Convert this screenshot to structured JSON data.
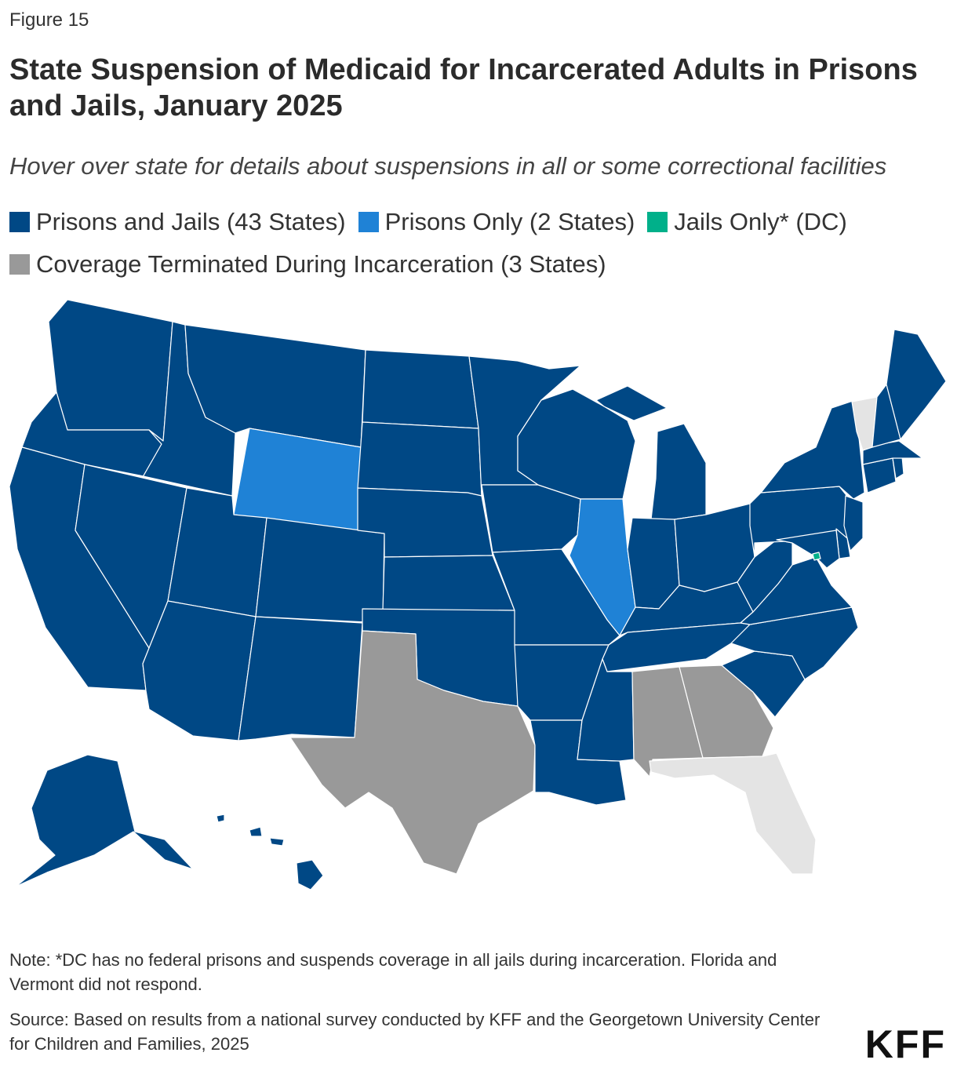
{
  "figure": {
    "label": "Figure 15"
  },
  "title": "State Suspension of Medicaid for Incarcerated Adults in Prisons and Jails, January 2025",
  "subtitle": "Hover over state for details about suspensions in all or some correctional facilities",
  "legend": [
    {
      "label": "Prisons and Jails (43 States)",
      "color": "#004885"
    },
    {
      "label": "Prisons Only (2 States)",
      "color": "#1f82d6"
    },
    {
      "label": "Jails Only* (DC)",
      "color": "#00b08a"
    },
    {
      "label": "Coverage Terminated During Incarceration (3 States)",
      "color": "#999999"
    }
  ],
  "no_response_color": "#e4e4e4",
  "map_data": {
    "categories": {
      "prisons_and_jails": "#004885",
      "prisons_only": "#1f82d6",
      "jails_only": "#00b08a",
      "terminated": "#999999",
      "no_response": "#e4e4e4"
    },
    "states": {
      "WA": "prisons_and_jails",
      "OR": "prisons_and_jails",
      "CA": "prisons_and_jails",
      "ID": "prisons_and_jails",
      "NV": "prisons_and_jails",
      "MT": "prisons_and_jails",
      "WY": "prisons_only",
      "UT": "prisons_and_jails",
      "AZ": "prisons_and_jails",
      "CO": "prisons_and_jails",
      "NM": "prisons_and_jails",
      "ND": "prisons_and_jails",
      "SD": "prisons_and_jails",
      "NE": "prisons_and_jails",
      "KS": "prisons_and_jails",
      "OK": "prisons_and_jails",
      "TX": "terminated",
      "MN": "prisons_and_jails",
      "IA": "prisons_and_jails",
      "MO": "prisons_and_jails",
      "AR": "prisons_and_jails",
      "LA": "prisons_and_jails",
      "WI": "prisons_and_jails",
      "IL": "prisons_only",
      "MI": "prisons_and_jails",
      "IN": "prisons_and_jails",
      "OH": "prisons_and_jails",
      "KY": "prisons_and_jails",
      "TN": "prisons_and_jails",
      "MS": "prisons_and_jails",
      "AL": "terminated",
      "GA": "terminated",
      "FL": "no_response",
      "SC": "prisons_and_jails",
      "NC": "prisons_and_jails",
      "VA": "prisons_and_jails",
      "WV": "prisons_and_jails",
      "PA": "prisons_and_jails",
      "NY": "prisons_and_jails",
      "VT": "no_response",
      "NH": "prisons_and_jails",
      "ME": "prisons_and_jails",
      "MA": "prisons_and_jails",
      "CT": "prisons_and_jails",
      "RI": "prisons_and_jails",
      "NJ": "prisons_and_jails",
      "DE": "prisons_and_jails",
      "MD": "prisons_and_jails",
      "DC": "jails_only",
      "AK": "prisons_and_jails",
      "HI": "prisons_and_jails"
    }
  },
  "note": "Note: *DC has no federal prisons and suspends coverage in all jails during incarceration. Florida and Vermont did not respond.",
  "source": "Source: Based on results from a national survey conducted by KFF and the Georgetown University Center for Children and Families, 2025",
  "logo": "KFF"
}
